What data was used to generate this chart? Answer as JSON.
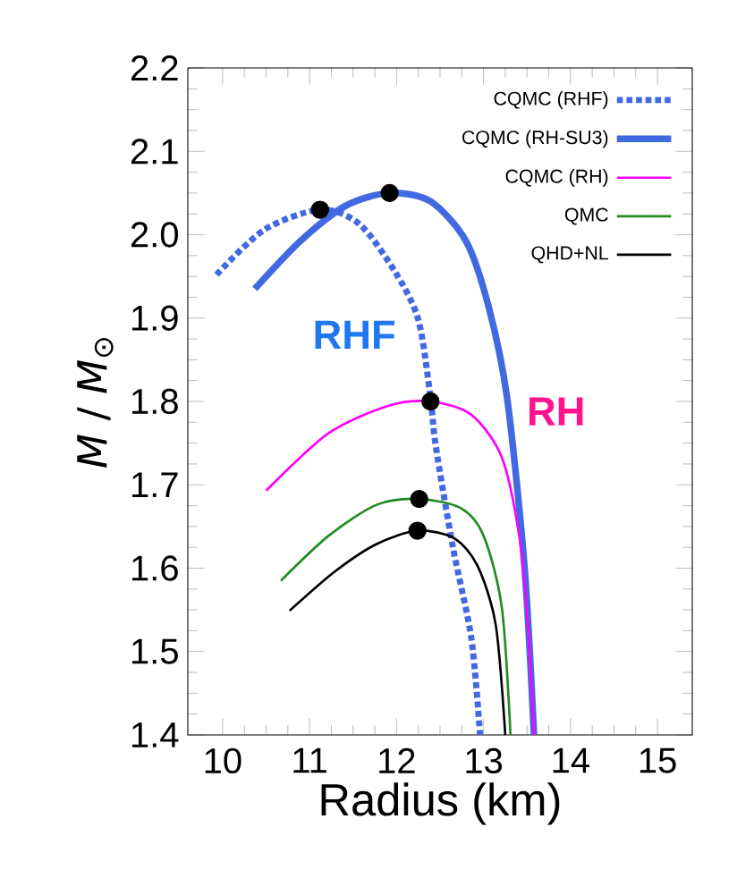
{
  "chart_data": {
    "type": "line",
    "xlabel": "Radius (km)",
    "ylabel": "*M* / *M*$_{⊙}$",
    "xlim": [
      9.6,
      15.4
    ],
    "ylim": [
      1.4,
      2.2
    ],
    "xticks": [
      10,
      11,
      12,
      13,
      14,
      15
    ],
    "yticks": [
      1.4,
      1.5,
      1.6,
      1.7,
      1.8,
      1.9,
      {
        "value": 2.0,
        "label": "2.0"
      },
      2.1,
      2.2
    ],
    "legend": "top right",
    "grid": false,
    "marker": "none",
    "annotations": [
      "RHF",
      "RH"
    ],
    "series": [
      {
        "name": "CQMC (RHF)",
        "color": "#4169e1",
        "line_style": "dotted",
        "x": [
          9.93,
          10.48,
          11.12,
          11.57,
          11.98,
          12.25,
          12.39,
          12.45,
          12.65,
          12.86,
          12.96
        ],
        "values": [
          1.952,
          2.006,
          2.03,
          2.013,
          1.956,
          1.898,
          1.805,
          1.747,
          1.624,
          1.516,
          1.4
        ]
      },
      {
        "name": "CQMC (RH-SU3)",
        "color": "#4169e1",
        "line_style": "solid",
        "x": [
          10.37,
          10.89,
          11.42,
          11.92,
          12.39,
          12.8,
          13.06,
          13.27,
          13.47,
          13.58
        ],
        "values": [
          1.935,
          1.992,
          2.035,
          2.05,
          2.04,
          1.992,
          1.913,
          1.805,
          1.603,
          1.4
        ]
      },
      {
        "name": "CQMC (RH)",
        "color": "#ff00ff",
        "line_style": "solid",
        "x": [
          10.5,
          11.22,
          11.91,
          12.39,
          12.86,
          13.21,
          13.41,
          13.51,
          13.58
        ],
        "values": [
          1.693,
          1.762,
          1.795,
          1.8,
          1.784,
          1.733,
          1.639,
          1.532,
          1.4
        ]
      },
      {
        "name": "QMC",
        "color": "#228b22",
        "line_style": "solid",
        "x": [
          10.67,
          11.22,
          11.77,
          12.26,
          12.74,
          13.0,
          13.21,
          13.31
        ],
        "values": [
          1.585,
          1.639,
          1.676,
          1.683,
          1.672,
          1.639,
          1.553,
          1.4
        ]
      },
      {
        "name": "QHD+NL",
        "color": "#000000",
        "line_style": "solid",
        "x": [
          10.77,
          11.29,
          11.77,
          12.24,
          12.66,
          12.93,
          13.14,
          13.25
        ],
        "values": [
          1.549,
          1.596,
          1.629,
          1.645,
          1.636,
          1.603,
          1.532,
          1.4
        ]
      },
      {
        "type": "scatter",
        "marker": "circle",
        "color": "#000000",
        "x": [
          11.12,
          11.92,
          12.39,
          12.26,
          12.24
        ],
        "values": [
          2.03,
          2.05,
          1.8,
          1.683,
          1.645
        ]
      }
    ]
  }
}
